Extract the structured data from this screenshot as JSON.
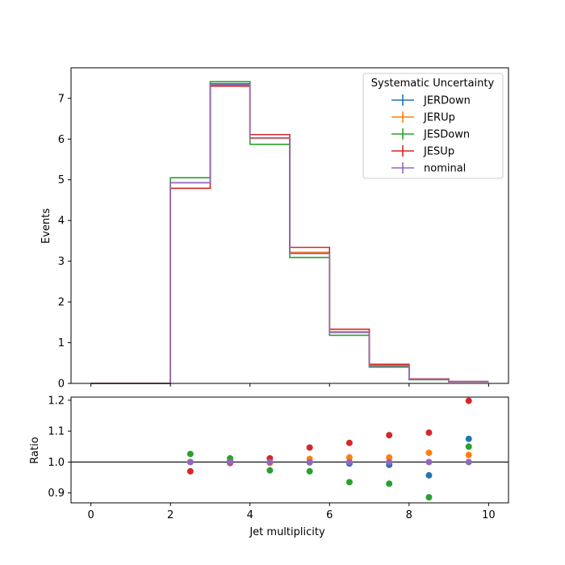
{
  "chart_data": [
    {
      "type": "line",
      "style": "step-histogram",
      "bin_edges": [
        0,
        1,
        2,
        3,
        4,
        5,
        6,
        7,
        8,
        9,
        10
      ],
      "xlim": [
        -0.5,
        10.5
      ],
      "ylim": [
        0,
        7.75
      ],
      "x_ticks": [
        0,
        2,
        4,
        6,
        8,
        10
      ],
      "y_ticks": [
        0,
        1,
        2,
        3,
        4,
        5,
        6,
        7
      ],
      "xlabel": "",
      "ylabel": "Events",
      "legend": {
        "title": "Systematic Uncertainty",
        "placement": "top-right"
      },
      "series": [
        {
          "name": "JERDown",
          "color": "#1f77b4",
          "values": [
            0,
            0,
            4.93,
            7.36,
            6.02,
            3.19,
            1.26,
            0.43,
            0.1,
            0.043
          ]
        },
        {
          "name": "JERUp",
          "color": "#ff7f0e",
          "values": [
            0,
            0,
            4.93,
            7.33,
            6.02,
            3.22,
            1.27,
            0.44,
            0.105,
            0.041
          ]
        },
        {
          "name": "JESDown",
          "color": "#2ca02c",
          "values": [
            0,
            0,
            5.05,
            7.41,
            5.87,
            3.09,
            1.18,
            0.4,
            0.09,
            0.042
          ]
        },
        {
          "name": "JESUp",
          "color": "#d62728",
          "values": [
            0,
            0,
            4.79,
            7.3,
            6.11,
            3.34,
            1.33,
            0.47,
            0.11,
            0.048
          ]
        },
        {
          "name": "nominal",
          "color": "#9467bd",
          "values": [
            0,
            0,
            4.93,
            7.33,
            6.03,
            3.19,
            1.25,
            0.43,
            0.1,
            0.04
          ]
        }
      ]
    },
    {
      "type": "scatter",
      "xlim": [
        -0.5,
        10.5
      ],
      "ylim": [
        0.868,
        1.21
      ],
      "x_ticks": [
        0,
        2,
        4,
        6,
        8,
        10
      ],
      "y_ticks": [
        0.9,
        1.0,
        1.1,
        1.2
      ],
      "x_tick_labels": [
        "0",
        "2",
        "4",
        "6",
        "8",
        "10"
      ],
      "y_tick_labels": [
        "0.9",
        "1.0",
        "1.1",
        "1.2"
      ],
      "xlabel": "Jet multiplicity",
      "ylabel": "Ratio",
      "reference_line": 1.0,
      "x": [
        2.5,
        3.5,
        4.5,
        5.5,
        6.5,
        7.5,
        8.5,
        9.5
      ],
      "series": [
        {
          "name": "JERDown",
          "color": "#1f77b4",
          "values": [
            1.0,
            1.003,
            0.998,
            0.999,
            0.995,
            0.991,
            0.957,
            1.075
          ]
        },
        {
          "name": "JERUp",
          "color": "#ff7f0e",
          "values": [
            1.0,
            0.998,
            0.997,
            1.01,
            1.015,
            1.015,
            1.03,
            1.023
          ]
        },
        {
          "name": "JESDown",
          "color": "#2ca02c",
          "values": [
            1.026,
            1.012,
            0.973,
            0.97,
            0.935,
            0.93,
            0.886,
            1.05
          ]
        },
        {
          "name": "JESUp",
          "color": "#d62728",
          "values": [
            0.97,
            0.997,
            1.012,
            1.047,
            1.062,
            1.087,
            1.095,
            1.198
          ]
        },
        {
          "name": "nominal",
          "color": "#9467bd",
          "values": [
            1.0,
            1.0,
            1.0,
            1.0,
            1.0,
            1.0,
            1.0,
            1.0
          ]
        }
      ]
    }
  ]
}
